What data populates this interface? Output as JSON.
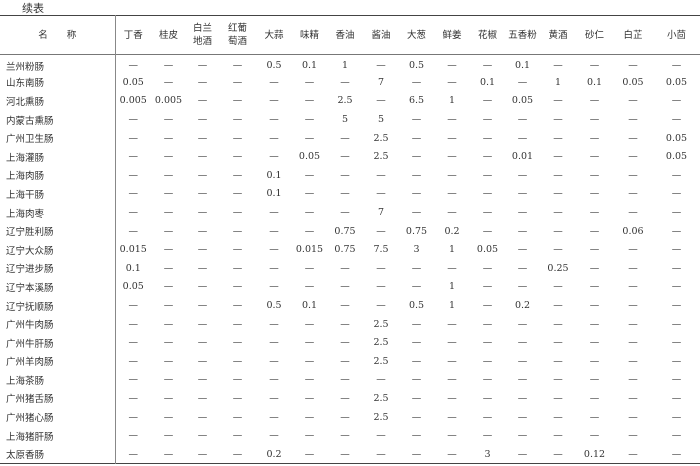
{
  "caption": "续表",
  "columns": [
    "名　　称",
    "丁香",
    "桂皮",
    "白兰地酒",
    "红葡萄酒",
    "大蒜",
    "味精",
    "香油",
    "酱油",
    "大葱",
    "鲜姜",
    "花椒",
    "五香粉",
    "黄酒",
    "砂仁",
    "白芷",
    "小茴"
  ],
  "rows": [
    {
      "name": "兰州粉肠",
      "values": [
        "—",
        "—",
        "—",
        "—",
        "0.5",
        "0.1",
        "1",
        "—",
        "0.5",
        "—",
        "—",
        "0.1",
        "—",
        "—",
        "—",
        "—"
      ]
    },
    {
      "name": "山东南肠",
      "values": [
        "0.05",
        "—",
        "—",
        "—",
        "—",
        "—",
        "—",
        "7",
        "—",
        "—",
        "0.1",
        "—",
        "1",
        "0.1",
        "0.05",
        "0.05"
      ]
    },
    {
      "name": "河北熏肠",
      "values": [
        "0.005",
        "0.005",
        "—",
        "—",
        "—",
        "—",
        "2.5",
        "—",
        "6.5",
        "1",
        "—",
        "0.05",
        "—",
        "—",
        "—",
        "—"
      ]
    },
    {
      "name": "内蒙古熏肠",
      "values": [
        "—",
        "—",
        "—",
        "—",
        "—",
        "—",
        "5",
        "5",
        "—",
        "—",
        "—",
        "—",
        "—",
        "—",
        "—",
        "—"
      ]
    },
    {
      "name": "广州卫生肠",
      "values": [
        "—",
        "—",
        "—",
        "—",
        "—",
        "—",
        "—",
        "2.5",
        "—",
        "—",
        "—",
        "—",
        "—",
        "—",
        "—",
        "0.05"
      ]
    },
    {
      "name": "上海灌肠",
      "values": [
        "—",
        "—",
        "—",
        "—",
        "—",
        "0.05",
        "—",
        "2.5",
        "—",
        "—",
        "—",
        "0.01",
        "—",
        "—",
        "—",
        "0.05"
      ]
    },
    {
      "name": "上海肉肠",
      "values": [
        "—",
        "—",
        "—",
        "—",
        "0.1",
        "—",
        "—",
        "—",
        "—",
        "—",
        "—",
        "—",
        "—",
        "—",
        "—",
        "—"
      ]
    },
    {
      "name": "上海干肠",
      "values": [
        "—",
        "—",
        "—",
        "—",
        "0.1",
        "—",
        "—",
        "—",
        "—",
        "—",
        "—",
        "—",
        "—",
        "—",
        "—",
        "—"
      ]
    },
    {
      "name": "上海肉枣",
      "values": [
        "—",
        "—",
        "—",
        "—",
        "—",
        "—",
        "—",
        "7",
        "—",
        "—",
        "—",
        "—",
        "—",
        "—",
        "—",
        "—"
      ]
    },
    {
      "name": "辽宁胜利肠",
      "values": [
        "—",
        "—",
        "—",
        "—",
        "—",
        "—",
        "0.75",
        "—",
        "0.75",
        "0.2",
        "—",
        "—",
        "—",
        "—",
        "0.06",
        "—"
      ]
    },
    {
      "name": "辽宁大众肠",
      "values": [
        "0.015",
        "—",
        "—",
        "—",
        "—",
        "0.015",
        "0.75",
        "7.5",
        "3",
        "1",
        "0.05",
        "—",
        "—",
        "—",
        "—",
        "—"
      ]
    },
    {
      "name": "辽宁进步肠",
      "values": [
        "0.1",
        "—",
        "—",
        "—",
        "—",
        "—",
        "—",
        "—",
        "—",
        "—",
        "—",
        "—",
        "0.25",
        "—",
        "—",
        "—"
      ]
    },
    {
      "name": "辽宁本溪肠",
      "values": [
        "0.05",
        "—",
        "—",
        "—",
        "—",
        "—",
        "—",
        "—",
        "—",
        "1",
        "—",
        "—",
        "—",
        "—",
        "—",
        "—"
      ]
    },
    {
      "name": "辽宁抚顺肠",
      "values": [
        "—",
        "—",
        "—",
        "—",
        "0.5",
        "0.1",
        "—",
        "—",
        "0.5",
        "1",
        "—",
        "0.2",
        "—",
        "—",
        "—",
        "—"
      ]
    },
    {
      "name": "广州牛肉肠",
      "values": [
        "—",
        "—",
        "—",
        "—",
        "—",
        "—",
        "—",
        "2.5",
        "—",
        "—",
        "—",
        "—",
        "—",
        "—",
        "—",
        "—"
      ]
    },
    {
      "name": "广州牛肝肠",
      "values": [
        "—",
        "—",
        "—",
        "—",
        "—",
        "—",
        "—",
        "2.5",
        "—",
        "—",
        "—",
        "—",
        "—",
        "—",
        "—",
        "—"
      ]
    },
    {
      "name": "广州羊肉肠",
      "values": [
        "—",
        "—",
        "—",
        "—",
        "—",
        "—",
        "—",
        "2.5",
        "—",
        "—",
        "—",
        "—",
        "—",
        "—",
        "—",
        "—"
      ]
    },
    {
      "name": "上海茶肠",
      "values": [
        "—",
        "—",
        "—",
        "—",
        "—",
        "—",
        "—",
        "—",
        "—",
        "—",
        "—",
        "—",
        "—",
        "—",
        "—",
        "—"
      ]
    },
    {
      "name": "广州猪舌肠",
      "values": [
        "—",
        "—",
        "—",
        "—",
        "—",
        "—",
        "—",
        "2.5",
        "—",
        "—",
        "—",
        "—",
        "—",
        "—",
        "—",
        "—"
      ]
    },
    {
      "name": "广州猪心肠",
      "values": [
        "—",
        "—",
        "—",
        "—",
        "—",
        "—",
        "—",
        "2.5",
        "—",
        "—",
        "—",
        "—",
        "—",
        "—",
        "—",
        "—"
      ]
    },
    {
      "name": "上海猪肝肠",
      "values": [
        "—",
        "—",
        "—",
        "—",
        "—",
        "—",
        "—",
        "—",
        "—",
        "—",
        "—",
        "—",
        "—",
        "—",
        "—",
        "—"
      ]
    },
    {
      "name": "太原香肠",
      "values": [
        "—",
        "—",
        "—",
        "—",
        "0.2",
        "—",
        "—",
        "—",
        "—",
        "—",
        "3",
        "—",
        "—",
        "0.12",
        "—",
        "—"
      ]
    }
  ]
}
